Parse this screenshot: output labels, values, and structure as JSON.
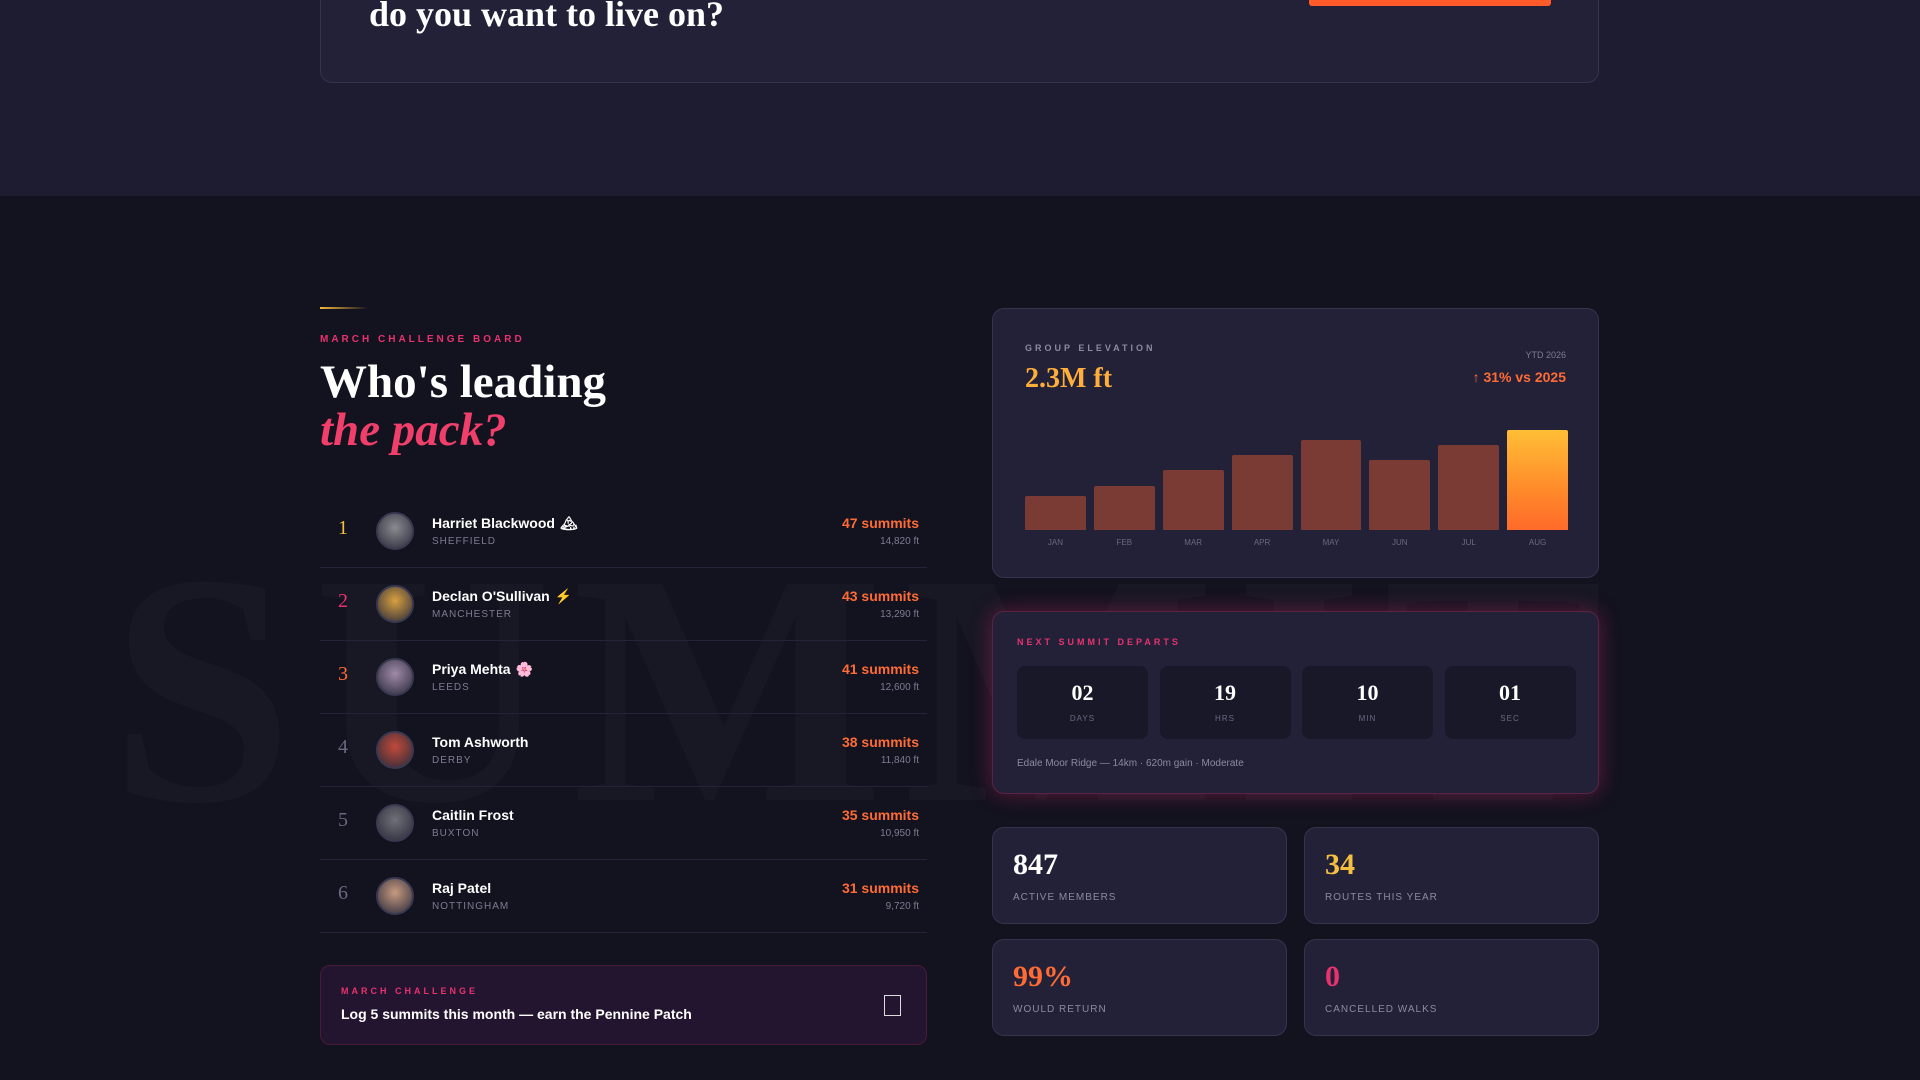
{
  "hero": {
    "title": "do you want to live on?"
  },
  "watermark": "SUMMIT",
  "leaderboard": {
    "eyebrow": "MARCH CHALLENGE BOARD",
    "title_line1": "Who's leading",
    "title_line2": "the pack?",
    "rows": [
      {
        "rank": 1,
        "name": "Harriet Blackwood",
        "badge": "🏔",
        "city": "SHEFFIELD",
        "summits": "47 summits",
        "feet": "14,820 ft"
      },
      {
        "rank": 2,
        "name": "Declan O'Sullivan",
        "badge": "⚡",
        "city": "MANCHESTER",
        "summits": "43 summits",
        "feet": "13,290 ft"
      },
      {
        "rank": 3,
        "name": "Priya Mehta",
        "badge": "🌸",
        "city": "LEEDS",
        "summits": "41 summits",
        "feet": "12,600 ft"
      },
      {
        "rank": 4,
        "name": "Tom Ashworth",
        "badge": "",
        "city": "DERBY",
        "summits": "38 summits",
        "feet": "11,840 ft"
      },
      {
        "rank": 5,
        "name": "Caitlin Frost",
        "badge": "",
        "city": "BUXTON",
        "summits": "35 summits",
        "feet": "10,950 ft"
      },
      {
        "rank": 6,
        "name": "Raj Patel",
        "badge": "",
        "city": "NOTTINGHAM",
        "summits": "31 summits",
        "feet": "9,720 ft"
      }
    ]
  },
  "challenge": {
    "eyebrow": "MARCH CHALLENGE",
    "text": "Log 5 summits this month — earn the Pennine Patch"
  },
  "elevation": {
    "eyebrow": "GROUP ELEVATION",
    "total": "2.3M ft",
    "period": "YTD 2026",
    "change": "↑ 31% vs 2025"
  },
  "chart_data": {
    "type": "bar",
    "categories": [
      "JAN",
      "FEB",
      "MAR",
      "APR",
      "MAY",
      "JUN",
      "JUL",
      "AUG"
    ],
    "values": [
      142,
      182,
      248,
      309,
      370,
      289,
      350,
      410
    ],
    "ylim": [
      0,
      465
    ],
    "colors": [
      "#7a3b35",
      "#7a3b35",
      "#7a3b35",
      "#7a3b35",
      "#7a3b35",
      "#7a3b35",
      "#7a3b35",
      "#ff8a2a"
    ]
  },
  "countdown": {
    "eyebrow": "NEXT SUMMIT DEPARTS",
    "units": [
      {
        "value": "02",
        "label": "DAYS"
      },
      {
        "value": "19",
        "label": "HRS"
      },
      {
        "value": "10",
        "label": "MIN"
      },
      {
        "value": "01",
        "label": "SEC"
      }
    ],
    "note": "Edale Moor Ridge — 14km · 620m gain · Moderate"
  },
  "stats": [
    {
      "value": "847",
      "label": "ACTIVE MEMBERS"
    },
    {
      "value": "34",
      "label": "ROUTES THIS YEAR"
    },
    {
      "value": "99%",
      "label": "WOULD RETURN"
    },
    {
      "value": "0",
      "label": "CANCELLED WALKS"
    }
  ]
}
